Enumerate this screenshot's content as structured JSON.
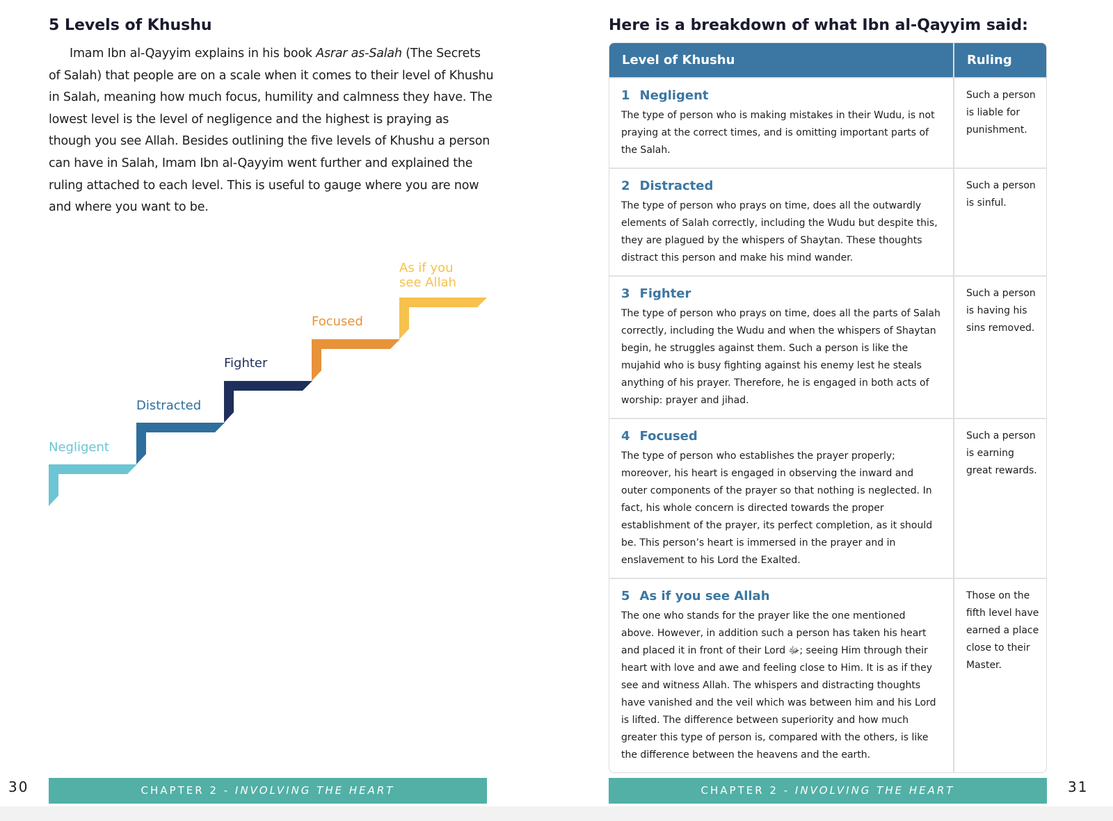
{
  "left": {
    "title": "5 Levels of Khushu",
    "paragraph": [
      "Imam Ibn al-Qayyim explains in his book ",
      "Asrar as-Salah",
      " (The Secrets of Salah) that people are on a scale when it comes to their level of Khushu in Salah, meaning how much focus, humility and calmness they have. The lowest level is the level of negligence and the highest is praying as though you see Allah. Besides outlining the five levels of Khushu a person can have in Salah, Imam Ibn al-Qayyim went further and explained the ruling attached to each level. This is useful to gauge where you are now and where you want to be."
    ],
    "stairs": [
      "Negligent",
      "Distracted",
      "Fighter",
      "Focused",
      "As if you see Allah"
    ],
    "page_number": 30
  },
  "right": {
    "title": "Here is a breakdown of what Ibn al-Qayyim said:",
    "table": {
      "headers": [
        "Level of Khushu",
        "Ruling"
      ],
      "rows": [
        {
          "number": 1,
          "name": "Negligent",
          "description": "The type of person who is making mistakes in their Wudu, is not praying at the correct times, and is omitting important parts of the Salah.",
          "ruling": "Such a person is liable for punishment."
        },
        {
          "number": 2,
          "name": "Distracted",
          "description": "The type of person who prays on time, does all the outwardly elements of Salah correctly, including the Wudu but despite this, they are plagued by the whispers of Shaytan. These thoughts distract this person and make his mind wander.",
          "ruling": "Such a person is sinful."
        },
        {
          "number": 3,
          "name": "Fighter",
          "description": "The type of person who prays on time, does all the parts of Salah correctly, including the Wudu and when the whispers of Shaytan begin, he struggles against them. Such a person is like the mujahid who is busy fighting against his enemy lest he steals anything of his prayer. Therefore, he is engaged in both acts of worship: prayer and jihad.",
          "ruling": "Such a person is having his sins removed."
        },
        {
          "number": 4,
          "name": "Focused",
          "description": "The type of person who establishes the prayer properly; moreover, his heart is engaged in observing the inward and outer components of the prayer so that nothing is neglected. In fact, his whole concern is directed towards the proper establishment of the prayer, its perfect completion, as it should be. This person’s heart is immersed in the prayer and in enslavement to his Lord the Exalted.",
          "ruling": "Such a person is earning great rewards."
        },
        {
          "number": 5,
          "name": "As if you see Allah",
          "description": "The one who stands for the prayer like the one mentioned above. However, in addition such a person has taken his heart and placed it in front of their Lord ﷻ; seeing Him through their heart with love and awe and feeling close to Him. It is as if they see and witness Allah. The whispers and distracting thoughts have vanished and the veil which was between him and his Lord is lifted. The difference between superiority and how much greater this type of person is, compared with the others, is like the difference between the heavens and the earth.",
          "ruling": "Those on the fifth level have earned a place close to their Master."
        }
      ]
    },
    "page_number": 31
  },
  "footer": {
    "chapter": "CHAPTER 2 - ",
    "subtitle": "INVOLVING THE HEART"
  }
}
